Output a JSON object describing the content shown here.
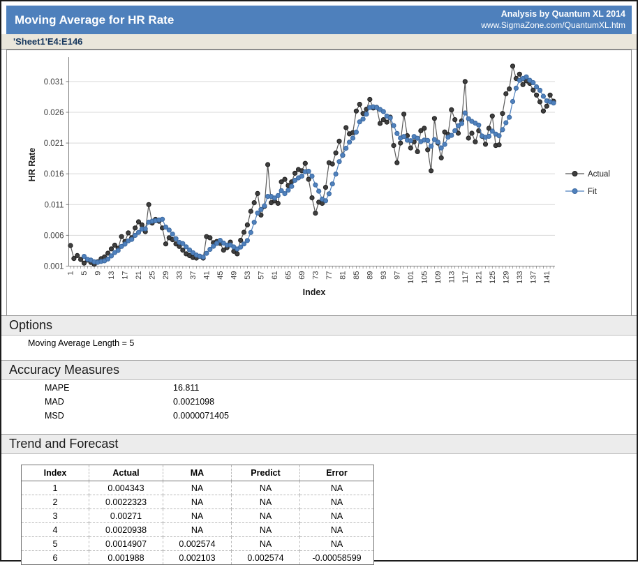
{
  "header": {
    "title": "Moving Average for HR Rate",
    "credit_line1": "Analysis by Quantum XL 2014",
    "credit_line2": "www.SigmaZone.com/QuantumXL.htm",
    "accent_color": "#4e80bc"
  },
  "sheet_ref": "'Sheet1'E4:E146",
  "options_section": {
    "heading": "Options",
    "item": "Moving Average Length = 5"
  },
  "accuracy_section": {
    "heading": "Accuracy Measures",
    "rows": [
      {
        "label": "MAPE",
        "value": "16.811"
      },
      {
        "label": "MAD",
        "value": "0.0021098"
      },
      {
        "label": "MSD",
        "value": "0.0000071405"
      }
    ]
  },
  "trend_section": {
    "heading": "Trend and Forecast"
  },
  "table": {
    "headers": [
      "Index",
      "Actual",
      "MA",
      "Predict",
      "Error"
    ],
    "rows": [
      [
        "1",
        "0.004343",
        "NA",
        "NA",
        "NA"
      ],
      [
        "2",
        "0.0022323",
        "NA",
        "NA",
        "NA"
      ],
      [
        "3",
        "0.00271",
        "NA",
        "NA",
        "NA"
      ],
      [
        "4",
        "0.0020938",
        "NA",
        "NA",
        "NA"
      ],
      [
        "5",
        "0.0014907",
        "0.002574",
        "NA",
        "NA"
      ],
      [
        "6",
        "0.001988",
        "0.002103",
        "0.002574",
        "-0.00058599"
      ]
    ]
  },
  "chart_data": {
    "type": "line",
    "xlabel": "Index",
    "ylabel": "HR Rate",
    "x_start": 1,
    "x_tick_step": 4,
    "x_tick_labels": [
      "1",
      "5",
      "9",
      "13",
      "17",
      "21",
      "25",
      "29",
      "33",
      "37",
      "41",
      "45",
      "49",
      "53",
      "57",
      "61",
      "65",
      "69",
      "73",
      "77",
      "81",
      "85",
      "89",
      "93",
      "97",
      "101",
      "105",
      "109",
      "113",
      "117",
      "121",
      "125",
      "129",
      "133",
      "137",
      "141"
    ],
    "ylim": [
      0.001,
      0.0345
    ],
    "y_ticks": [
      0.001,
      0.006,
      0.011,
      0.016,
      0.021,
      0.026,
      0.031
    ],
    "y_tick_labels": [
      "0.001",
      "0.006",
      "0.011",
      "0.016",
      "0.021",
      "0.026",
      "0.031"
    ],
    "grid": "horizontal",
    "legend_position": "right",
    "series": [
      {
        "name": "Actual",
        "color": "#3f3f3f",
        "line_color": "#595959",
        "marker_stroke": "#1f1f1f",
        "values": [
          0.004343,
          0.0022323,
          0.00271,
          0.0020938,
          0.0014907,
          0.001988,
          0.0016,
          0.0013,
          0.0017,
          0.0022,
          0.0025,
          0.0031,
          0.0038,
          0.0044,
          0.0039,
          0.0058,
          0.005,
          0.0064,
          0.0056,
          0.0072,
          0.0082,
          0.0077,
          0.0066,
          0.011,
          0.008,
          0.0086,
          0.0083,
          0.0072,
          0.0046,
          0.0056,
          0.0053,
          0.0046,
          0.0042,
          0.0036,
          0.003,
          0.0027,
          0.0024,
          0.0023,
          0.0026,
          0.0023,
          0.0058,
          0.0056,
          0.0048,
          0.005,
          0.0047,
          0.0036,
          0.004,
          0.0049,
          0.0034,
          0.003,
          0.0052,
          0.0065,
          0.0077,
          0.0099,
          0.0113,
          0.0128,
          0.0093,
          0.0107,
          0.0175,
          0.0113,
          0.0116,
          0.0112,
          0.0147,
          0.0151,
          0.0141,
          0.0147,
          0.0161,
          0.0167,
          0.0165,
          0.0177,
          0.0151,
          0.0121,
          0.0096,
          0.0114,
          0.0112,
          0.0138,
          0.0178,
          0.0176,
          0.0194,
          0.0213,
          0.019,
          0.0235,
          0.0225,
          0.0227,
          0.0262,
          0.0273,
          0.0258,
          0.0265,
          0.0281,
          0.0267,
          0.0268,
          0.0242,
          0.0248,
          0.0244,
          0.0252,
          0.0206,
          0.0178,
          0.021,
          0.0257,
          0.0222,
          0.0202,
          0.0212,
          0.0196,
          0.023,
          0.0234,
          0.0199,
          0.0165,
          0.025,
          0.021,
          0.0186,
          0.0228,
          0.0224,
          0.0264,
          0.0248,
          0.0226,
          0.0246,
          0.031,
          0.0218,
          0.0226,
          0.0212,
          0.023,
          0.0221,
          0.0208,
          0.0234,
          0.0254,
          0.0206,
          0.0207,
          0.0258,
          0.029,
          0.0298,
          0.0335,
          0.0315,
          0.0322,
          0.0305,
          0.0311,
          0.0307,
          0.0296,
          0.0288,
          0.0277,
          0.0262,
          0.027,
          0.0288,
          0.0278
        ]
      },
      {
        "name": "Fit",
        "color": "#4f81bd",
        "line_color": "#4f81bd",
        "marker_stroke": "#3c69a0",
        "values": [
          null,
          null,
          null,
          null,
          0.002574,
          0.002103,
          0.0019765,
          0.0016945,
          0.0016157,
          0.0017576,
          0.00186,
          0.00216,
          0.00266,
          0.0032,
          0.00354,
          0.0042,
          0.00458,
          0.0051,
          0.00534,
          0.006,
          0.00648,
          0.00702,
          0.00706,
          0.00814,
          0.0083,
          0.00838,
          0.0085,
          0.00862,
          0.00734,
          0.00686,
          0.0062,
          0.00546,
          0.00486,
          0.00466,
          0.00414,
          0.00362,
          0.00318,
          0.0028,
          0.0026,
          0.00246,
          0.00308,
          0.00372,
          0.00422,
          0.0047,
          0.00518,
          0.00474,
          0.00442,
          0.00444,
          0.00412,
          0.00378,
          0.0041,
          0.0046,
          0.00516,
          0.00646,
          0.00812,
          0.00964,
          0.0102,
          0.0108,
          0.01232,
          0.01232,
          0.01208,
          0.01246,
          0.01326,
          0.01278,
          0.01334,
          0.01396,
          0.01494,
          0.01534,
          0.01562,
          0.01634,
          0.01642,
          0.01562,
          0.0142,
          0.01318,
          0.01188,
          0.01162,
          0.01276,
          0.01436,
          0.01596,
          0.01798,
          0.01902,
          0.02016,
          0.02114,
          0.0218,
          0.02278,
          0.02444,
          0.0249,
          0.0257,
          0.02678,
          0.02688,
          0.02678,
          0.02646,
          0.02612,
          0.02538,
          0.02508,
          0.02384,
          0.02256,
          0.0218,
          0.02206,
          0.02146,
          0.02138,
          0.02206,
          0.02178,
          0.02124,
          0.02148,
          0.02142,
          0.02048,
          0.02156,
          0.02116,
          0.0202,
          0.02078,
          0.02196,
          0.02224,
          0.023,
          0.0238,
          0.02416,
          0.02588,
          0.02496,
          0.02452,
          0.02424,
          0.02392,
          0.02214,
          0.02194,
          0.0221,
          0.02294,
          0.02246,
          0.02218,
          0.02318,
          0.0243,
          0.02518,
          0.02776,
          0.02992,
          0.0312,
          0.0315,
          0.03176,
          0.0312,
          0.03082,
          0.03014,
          0.02958,
          0.0286,
          0.02786,
          0.0277,
          0.0275
        ]
      }
    ]
  }
}
